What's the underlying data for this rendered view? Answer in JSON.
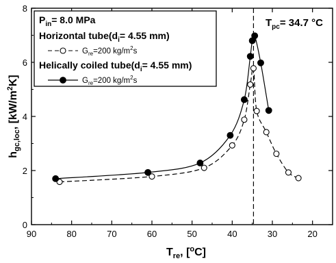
{
  "chart_data": {
    "type": "line",
    "xlabel_main": "T",
    "xlabel_sub": "re",
    "xlabel_rest": ", [",
    "xlabel_sup": "o",
    "xlabel_end": "C]",
    "ylabel_main": "h",
    "ylabel_sub": "gc,loc",
    "ylabel_rest": ", [kW/m",
    "ylabel_sup": "2",
    "ylabel_end": "K]",
    "xlim": [
      90,
      15
    ],
    "ylim": [
      0,
      8
    ],
    "x_reversed": true,
    "xticks": [
      90,
      80,
      70,
      60,
      50,
      40,
      30,
      20
    ],
    "xtick_labels": [
      "90",
      "80",
      "70",
      "60",
      "50",
      "40",
      "30",
      "20"
    ],
    "yticks": [
      0,
      2,
      4,
      6,
      8
    ],
    "ytick_labels": [
      "0",
      "2",
      "4",
      "6",
      "8"
    ],
    "legend": {
      "placement": "top-left",
      "line1_main": "P",
      "line1_sub": "in",
      "line1_rest": "= 8.0 MPa",
      "line2_main": "Horizontal tube(d",
      "line2_sub": "i",
      "line2_rest": "= 4.55 mm)",
      "line3_main": "G",
      "line3_sub": "re",
      "line3_rest": "=200 kg/m",
      "line3_sup": "2",
      "line3_end": "s",
      "line4_main": "Helically coiled tube(d",
      "line4_sub": "i",
      "line4_rest": "= 4.55 mm)",
      "line5_main": "G",
      "line5_sub": "re",
      "line5_rest": "=200 kg/m",
      "line5_sup": "2",
      "line5_end": "s"
    },
    "annotation": {
      "x": 34.7,
      "main": "T",
      "sub": "pc",
      "rest": "= 34.7 °C"
    },
    "series": [
      {
        "marker": "open-circle",
        "line_style": "dashed",
        "x": [
          83.0,
          60.0,
          47.0,
          40.0,
          37.0,
          35.5,
          34.7,
          33.9,
          31.5,
          29.0,
          26.0,
          23.5
        ],
        "y": [
          1.58,
          1.78,
          2.1,
          2.93,
          3.88,
          5.18,
          5.78,
          4.2,
          3.42,
          2.62,
          1.93,
          1.72
        ]
      },
      {
        "marker": "filled-circle",
        "line_style": "solid",
        "x": [
          84.0,
          61.0,
          48.0,
          40.5,
          37.0,
          35.5,
          35.0,
          34.4,
          32.9,
          30.9
        ],
        "y": [
          1.7,
          1.93,
          2.28,
          3.3,
          4.62,
          6.22,
          6.8,
          6.98,
          5.98,
          4.22
        ]
      }
    ]
  }
}
